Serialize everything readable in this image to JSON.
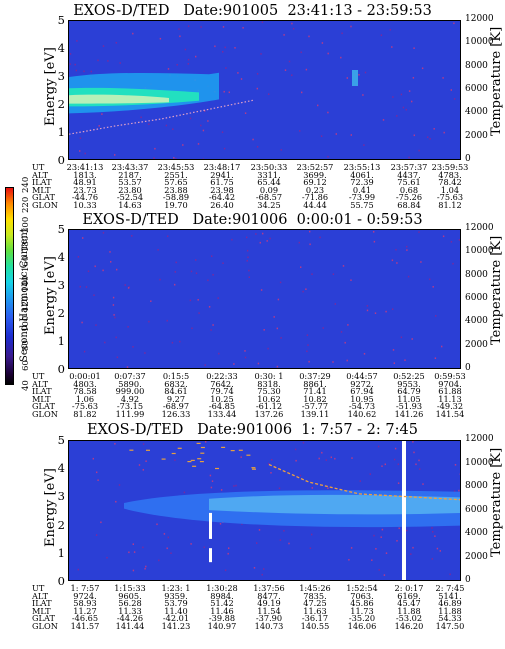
{
  "colorbar": {
    "label": "Second Harmonic Current",
    "ticks": [
      "40",
      "60",
      "80",
      "100",
      "120",
      "140",
      "160",
      "180",
      "200",
      "220",
      "240"
    ]
  },
  "panels": [
    {
      "title": "EXOS-D/TED   Date:901005  23:41:13 - 23:59:53",
      "ylabel": "Energy [eV]",
      "rlabel": "Temperature [K]",
      "yticks": [
        "0",
        "1",
        "2",
        "3",
        "4",
        "5"
      ],
      "rticks": [
        "0",
        "2000",
        "4000",
        "6000",
        "8000",
        "10000",
        "12000"
      ],
      "orbit_labels": [
        "UT",
        "ALT",
        "ILAT",
        "MLT",
        "GLAT",
        "GLON"
      ],
      "orbit": [
        [
          "23:41:13",
          "1813.",
          "48.91",
          "23.73",
          "-44.76",
          "10.33"
        ],
        [
          "23:43:37",
          "2187.",
          "53.57",
          "23.80",
          "-52.54",
          "14.63"
        ],
        [
          "23:45:53",
          "2551.",
          "57.65",
          "23.88",
          "-58.89",
          "19.70"
        ],
        [
          "23:48:17",
          "2941.",
          "61.75",
          "23.98",
          "-64.42",
          "26.40"
        ],
        [
          "23:50:33",
          "3311.",
          "65.44",
          "0.09",
          "-68.57",
          "34.25"
        ],
        [
          "23:52:57",
          "3699.",
          "69.12",
          "0.23",
          "-71.86",
          "44.44"
        ],
        [
          "23:55:13",
          "4061.",
          "72.39",
          "0.41",
          "-73.99",
          "55.75"
        ],
        [
          "23:57:37",
          "4437.",
          "75.61",
          "0.68",
          "-75.26",
          "68.84"
        ],
        [
          "23:59:53",
          "4783.",
          "78.42",
          "1.04",
          "-75.63",
          "81.12"
        ]
      ]
    },
    {
      "title": "EXOS-D/TED   Date:901006  0:00:01 - 0:59:53",
      "ylabel": "Energy [eV]",
      "rlabel": "Temperature [K]",
      "yticks": [
        "0",
        "1",
        "2",
        "3",
        "4",
        "5"
      ],
      "rticks": [
        "0",
        "2000",
        "4000",
        "6000",
        "8000",
        "10000",
        "12000"
      ],
      "orbit_labels": [
        "UT",
        "ALT",
        "ILAT",
        "MLT",
        "GLAT",
        "GLON"
      ],
      "orbit": [
        [
          "0:00:01",
          "4803.",
          "78.58",
          "1.06",
          "-75.63",
          "81.82"
        ],
        [
          "0:07:37",
          "5890.",
          "999.00",
          "4.92",
          "-73.15",
          "111.99"
        ],
        [
          "0:15:5",
          "6832.",
          "84.61",
          "9.27",
          "-68.97",
          "126.33"
        ],
        [
          "0:22:33",
          "7642.",
          "79.74",
          "10.25",
          "-64.85",
          "133.44"
        ],
        [
          "0:30: 1",
          "8318.",
          "75.30",
          "10.62",
          "-61.12",
          "137.26"
        ],
        [
          "0:37:29",
          "8861.",
          "71.41",
          "10.82",
          "-57.77",
          "139.11"
        ],
        [
          "0:44:57",
          "9272.",
          "67.94",
          "10.95",
          "-54.73",
          "140.62"
        ],
        [
          "0:52:25",
          "9553.",
          "64.79",
          "11.05",
          "-51.93",
          "141.26"
        ],
        [
          "0:59:53",
          "9704.",
          "61.88",
          "11.13",
          "-49.32",
          "141.54"
        ]
      ]
    },
    {
      "title": "EXOS-D/TED   Date:901006  1: 7:57 - 2: 7:45",
      "ylabel": "Energy [eV]",
      "rlabel": "Temperature [K]",
      "yticks": [
        "0",
        "1",
        "2",
        "3",
        "4",
        "5"
      ],
      "rticks": [
        "0",
        "2000",
        "4000",
        "6000",
        "8000",
        "10000",
        "12000"
      ],
      "orbit_labels": [
        "UT",
        "ALT",
        "ILAT",
        "MLT",
        "GLAT",
        "GLON"
      ],
      "orbit": [
        [
          "1: 7:57",
          "9724.",
          "58.93",
          "11.27",
          "-46.65",
          "141.57"
        ],
        [
          "1:15:33",
          "9605.",
          "56.28",
          "11.33",
          "-44.26",
          "141.44"
        ],
        [
          "1:23: 1",
          "9359.",
          "53.79",
          "11.40",
          "-42.01",
          "141.23"
        ],
        [
          "1:30:28",
          "8984.",
          "51.42",
          "11.46",
          "-39.88",
          "140.97"
        ],
        [
          "1:37:56",
          "8477.",
          "49.19",
          "11.54",
          "-37.90",
          "140.73"
        ],
        [
          "1:45:26",
          "7835.",
          "47.25",
          "11.63",
          "-36.17",
          "140.55"
        ],
        [
          "1:52:54",
          "7063.",
          "45.86",
          "11.73",
          "-35.20",
          "146.06"
        ],
        [
          "2: 0:17",
          "6169.",
          "45.47",
          "11.88",
          "-53.02",
          "146.20"
        ],
        [
          "2: 7:45",
          "5141.",
          "46.89",
          "11.88",
          "54.33",
          "147.50"
        ]
      ]
    }
  ],
  "chart_data": [
    {
      "type": "heatmap",
      "title": "EXOS-D/TED   Date:901005  23:41:13 - 23:59:53",
      "xlabel": "",
      "ylabel": "Energy [eV]",
      "ylim": [
        0,
        5
      ],
      "y2label": "Temperature [K]",
      "y2lim": [
        0,
        12000
      ],
      "colorbar": {
        "label": "Second Harmonic Current",
        "range": [
          40,
          240
        ]
      },
      "x": [
        "23:41:13",
        "23:43:37",
        "23:45:53",
        "23:48:17",
        "23:50:33",
        "23:52:57",
        "23:55:13",
        "23:57:37",
        "23:59:53"
      ],
      "features": [
        {
          "name": "band",
          "x_start": "23:41:13",
          "x_end": "23:48:17",
          "energy_low": 1.7,
          "energy_high": 3.2,
          "peak_energy": 2.2
        },
        {
          "name": "temperature",
          "x": [
            "23:41:13",
            "23:43:37",
            "23:45:53",
            "23:48:17",
            "23:50:33"
          ],
          "values": [
            2300,
            3000,
            3600,
            4400,
            5200
          ]
        }
      ]
    },
    {
      "type": "heatmap",
      "title": "EXOS-D/TED   Date:901006  0:00:01 - 0:59:53",
      "xlabel": "",
      "ylabel": "Energy [eV]",
      "ylim": [
        0,
        5
      ],
      "y2label": "Temperature [K]",
      "y2lim": [
        0,
        12000
      ],
      "colorbar": {
        "label": "Second Harmonic Current",
        "range": [
          40,
          240
        ]
      },
      "x": [
        "0:00:01",
        "0:07:37",
        "0:15:5",
        "0:22:33",
        "0:30: 1",
        "0:37:29",
        "0:44:57",
        "0:52:25",
        "0:59:53"
      ],
      "features": []
    },
    {
      "type": "heatmap",
      "title": "EXOS-D/TED   Date:901006  1: 7:57 - 2: 7:45",
      "xlabel": "",
      "ylabel": "Energy [eV]",
      "ylim": [
        0,
        5
      ],
      "y2label": "Temperature [K]",
      "y2lim": [
        0,
        12000
      ],
      "colorbar": {
        "label": "Second Harmonic Current",
        "range": [
          40,
          240
        ]
      },
      "x": [
        "1: 7:57",
        "1:15:33",
        "1:23: 1",
        "1:30:28",
        "1:37:56",
        "1:45:26",
        "1:52:54",
        "2: 0:17",
        "2: 7:45"
      ],
      "features": [
        {
          "name": "band",
          "x_start": "1:23: 1",
          "x_end": "2: 7:45",
          "energy_low": 1.9,
          "energy_high": 3.3,
          "peak_energy": 2.8
        },
        {
          "name": "temperature",
          "x": [
            "1:45:26",
            "1:52:54",
            "2: 0:17",
            "2: 7:45"
          ],
          "values": [
            10000,
            8500,
            7500,
            7000
          ]
        },
        {
          "name": "data-gap",
          "x": [
            "1:30:28",
            "2: 0:17"
          ]
        }
      ]
    }
  ]
}
